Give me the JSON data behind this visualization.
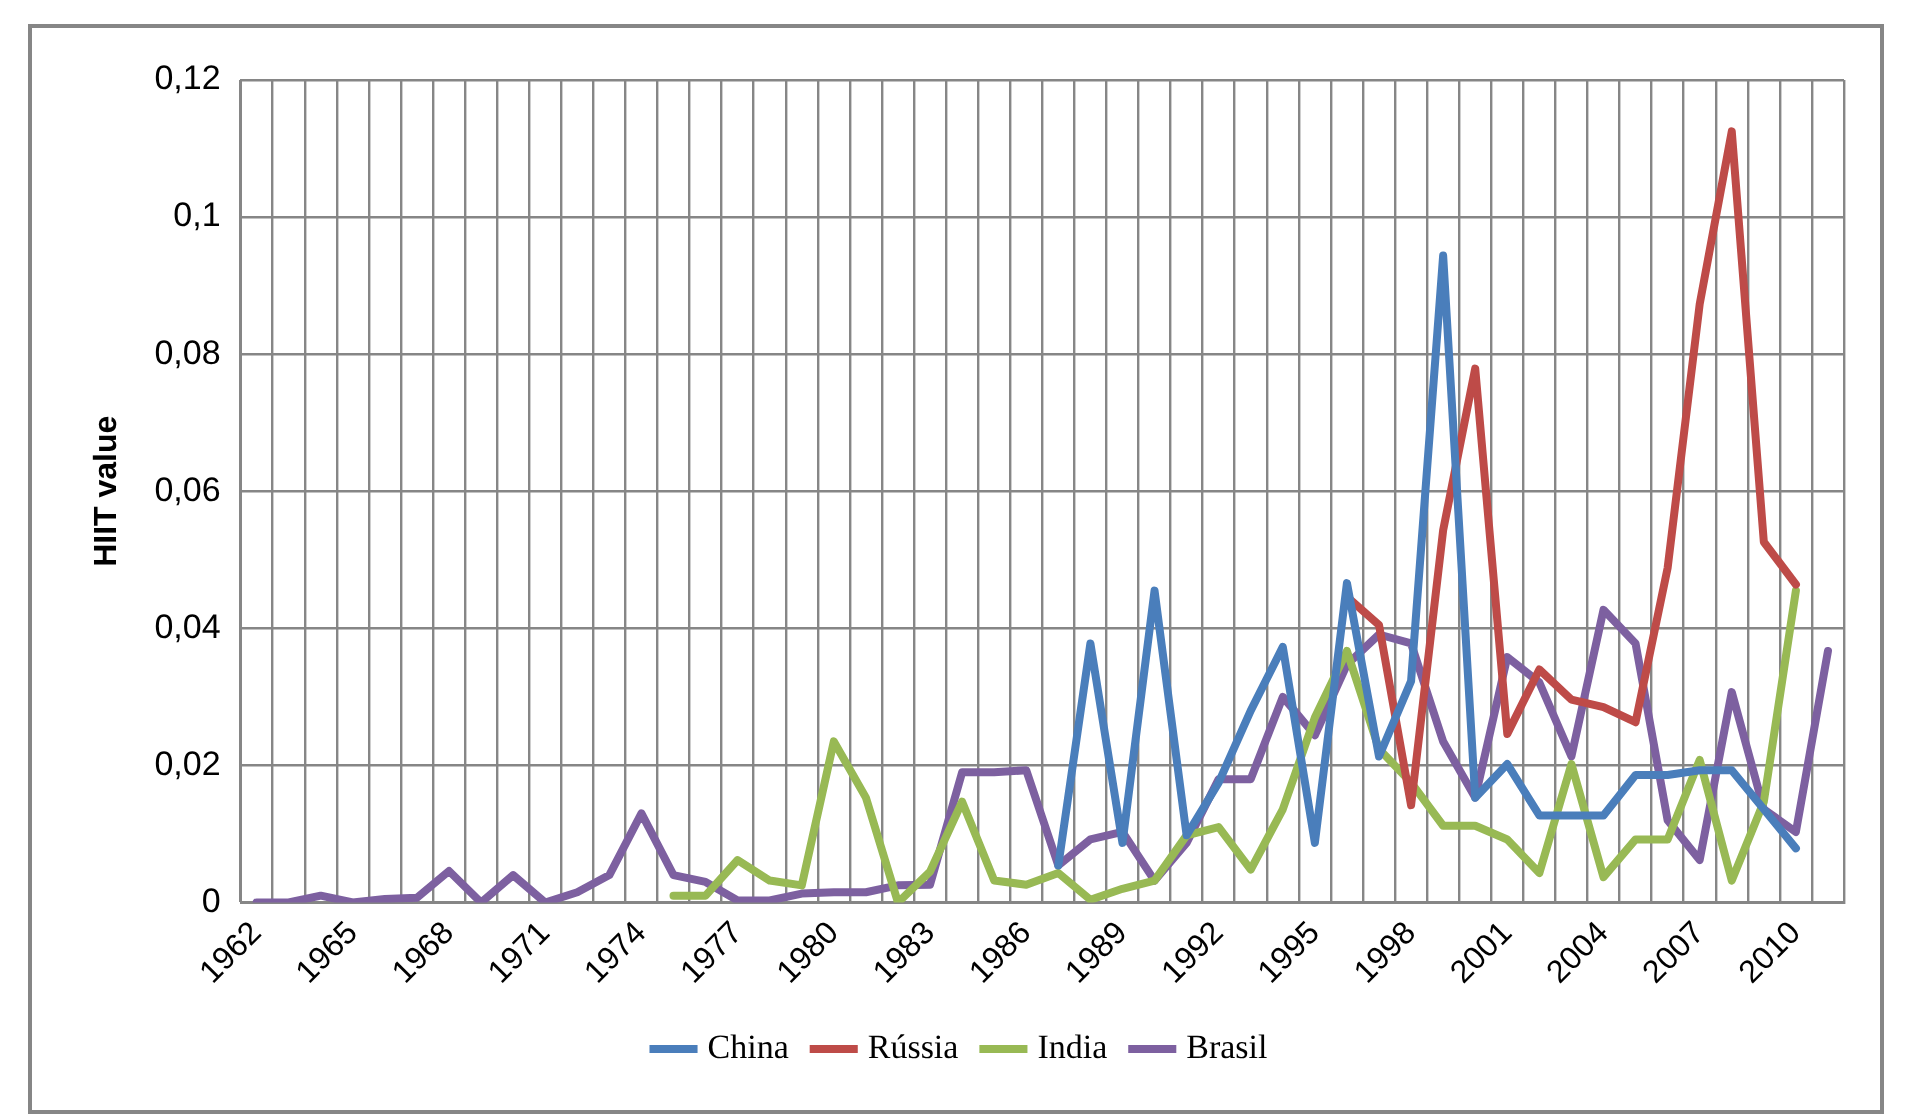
{
  "chart_data": {
    "type": "line",
    "ylabel": "HIIT value",
    "categories": [
      "1962",
      null,
      null,
      "1965",
      null,
      null,
      "1968",
      null,
      null,
      "1971",
      null,
      null,
      "1974",
      null,
      null,
      "1977",
      null,
      null,
      "1980",
      null,
      null,
      "1983",
      null,
      null,
      "1986",
      null,
      null,
      "1989",
      null,
      null,
      "1992",
      null,
      null,
      "1995",
      null,
      null,
      "1998",
      null,
      null,
      "2001",
      null,
      null,
      "2004",
      null,
      null,
      "2007",
      null,
      null,
      "2010",
      null
    ],
    "series": [
      {
        "name": "China",
        "color": "#4a7ebb",
        "values": [
          null,
          null,
          null,
          null,
          null,
          null,
          null,
          null,
          null,
          null,
          null,
          null,
          null,
          null,
          null,
          null,
          null,
          null,
          null,
          null,
          null,
          null,
          null,
          null,
          null,
          0.0054,
          0.0378,
          0.0087,
          0.0455,
          0.0098,
          0.0175,
          0.028,
          0.0373,
          0.0087,
          0.0466,
          0.0213,
          0.0323,
          0.0944,
          0.0153,
          0.0202,
          0.0127,
          0.0127,
          0.0127,
          0.0186,
          0.0186,
          0.0193,
          0.0193,
          0.0136,
          0.0079,
          null
        ]
      },
      {
        "name": "Rússia",
        "color": "#be4b48",
        "values": [
          null,
          null,
          null,
          null,
          null,
          null,
          null,
          null,
          null,
          null,
          null,
          null,
          null,
          null,
          null,
          null,
          null,
          null,
          null,
          null,
          null,
          null,
          null,
          null,
          null,
          null,
          null,
          null,
          null,
          null,
          null,
          null,
          null,
          null,
          0.0446,
          0.0405,
          0.0142,
          0.0543,
          0.0779,
          0.0246,
          0.034,
          0.0296,
          0.0285,
          0.0263,
          0.0488,
          0.0873,
          0.1125,
          0.0526,
          0.0464,
          null
        ]
      },
      {
        "name": "India",
        "color": "#98b954",
        "values": [
          null,
          null,
          null,
          null,
          null,
          null,
          null,
          null,
          null,
          null,
          null,
          null,
          null,
          0.001,
          0.001,
          0.0062,
          0.0032,
          0.0025,
          0.0235,
          0.0153,
          0,
          0.0045,
          0.0147,
          0.0032,
          0.0026,
          0.0043,
          0.0004,
          0.002,
          0.0032,
          0.0098,
          0.011,
          0.0048,
          0.0136,
          0.027,
          0.0367,
          0.0224,
          0.0175,
          0.0112,
          0.0112,
          0.0092,
          0.0043,
          0.0202,
          0.0037,
          0.0092,
          0.0092,
          0.0208,
          0.0032,
          0.0147,
          0.0455,
          null
        ]
      },
      {
        "name": "Brasil",
        "color": "#7d60a0",
        "values": [
          0,
          0,
          0.001,
          0,
          0.0005,
          0.0007,
          0.0046,
          0,
          0.004,
          0,
          0.0015,
          0.004,
          0.013,
          0.004,
          0.003,
          0.0003,
          0.0003,
          0.0013,
          0.0015,
          0.0015,
          0.0025,
          0.0026,
          0.019,
          0.019,
          0.0193,
          0.0054,
          0.0092,
          0.0103,
          0.0032,
          0.0087,
          0.018,
          0.018,
          0.03,
          0.0244,
          0.0347,
          0.0391,
          0.0378,
          0.0235,
          0.0153,
          0.0358,
          0.0321,
          0.0213,
          0.0427,
          0.0378,
          0.012,
          0.0062,
          0.0307,
          0.0136,
          0.0103,
          0.0367
        ]
      }
    ],
    "ylim": [
      0,
      0.12
    ],
    "yticks": [
      0,
      {
        "value": 0.02,
        "label": "0,02"
      },
      {
        "value": 0.04,
        "label": "0,04"
      },
      {
        "value": 0.06,
        "label": "0,06"
      },
      {
        "value": 0.08,
        "label": "0,08"
      },
      {
        "value": 0.1,
        "label": "0,1"
      },
      {
        "value": 0.12,
        "label": "0,12"
      }
    ],
    "grid": true,
    "legend": "bottom",
    "marker": "none",
    "line_style": "solid"
  }
}
